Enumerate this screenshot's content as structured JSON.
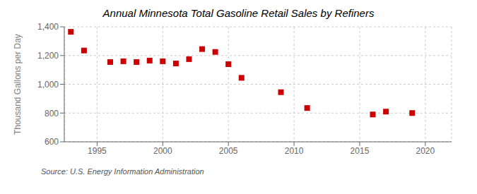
{
  "chart_data": {
    "type": "scatter",
    "title": "Annual Minnesota Total Gasoline Retail Sales by Refiners",
    "ylabel": "Thousand Gallons per Day",
    "annotations": [
      "Source: U.S. Energy Information Administration"
    ],
    "x": [
      1993,
      1994,
      1996,
      1997,
      1998,
      1999,
      2000,
      2001,
      2002,
      2003,
      2004,
      2005,
      2006,
      2009,
      2011,
      2016,
      2017,
      2019
    ],
    "values": [
      1365,
      1235,
      1155,
      1160,
      1155,
      1165,
      1160,
      1145,
      1175,
      1245,
      1225,
      1140,
      1045,
      945,
      835,
      790,
      810,
      800
    ],
    "color": "#cc0000",
    "marker": "square",
    "xlim": [
      1992.5,
      2022
    ],
    "xticks": [
      1995,
      2000,
      2005,
      2010,
      2015,
      2020
    ],
    "ylim": [
      600,
      1400
    ],
    "yticks": [
      600,
      800,
      {
        "value": 1000,
        "label": "1,000"
      },
      {
        "value": 1200,
        "label": "1,200"
      },
      {
        "value": 1400,
        "label": "1,400"
      }
    ],
    "grid": true
  }
}
